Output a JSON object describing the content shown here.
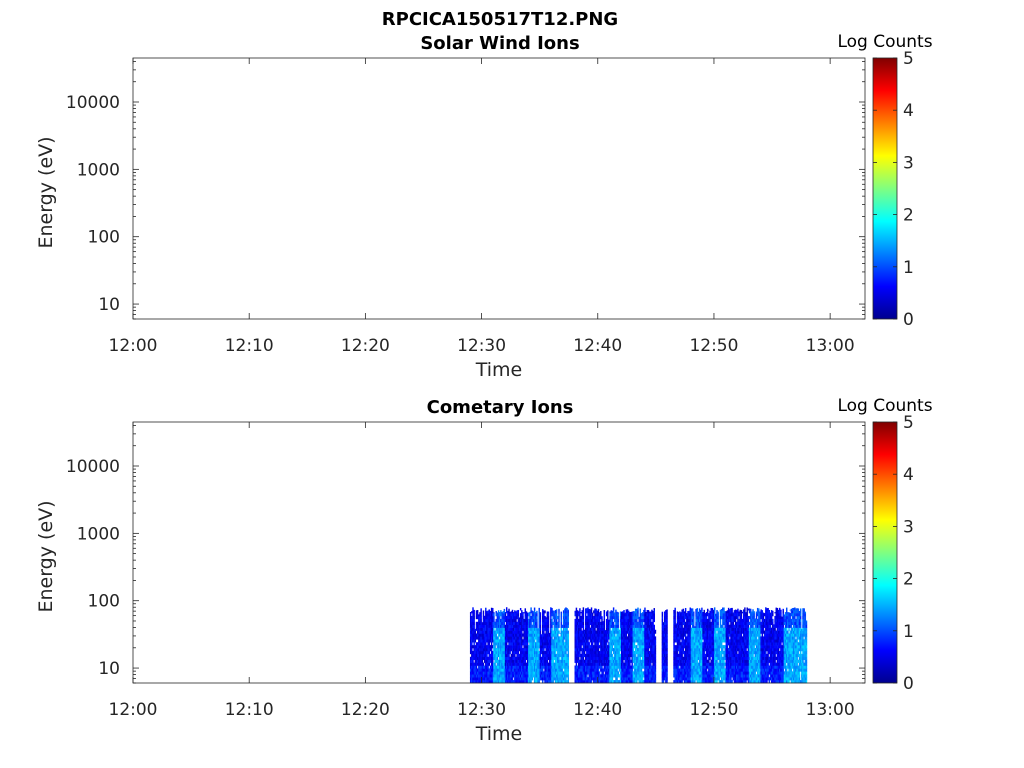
{
  "figure": {
    "title": "RPCICA150517T12.PNG"
  },
  "colors": {
    "colormap": [
      "#00008f",
      "#0000ff",
      "#0080ff",
      "#00ffff",
      "#80ff80",
      "#ffff00",
      "#ff8000",
      "#ff0000",
      "#800000"
    ],
    "axes": "#262626"
  },
  "chart_data": [
    {
      "type": "heatmap",
      "title": "Solar Wind Ions",
      "xlabel": "Time",
      "ylabel": "Energy (eV)",
      "yscale": "log",
      "xlim": [
        "12:00",
        "13:03"
      ],
      "ylim": [
        6,
        45000
      ],
      "xticks": [
        "12:00",
        "12:10",
        "12:20",
        "12:30",
        "12:40",
        "12:50",
        "13:00"
      ],
      "yticks": [
        10,
        100,
        1000,
        10000
      ],
      "ytick_labels": [
        "10",
        "100",
        "1000",
        "10000"
      ],
      "colorbar": {
        "label": "Log Counts",
        "range": [
          0,
          5
        ],
        "ticks": [
          "0",
          "1",
          "2",
          "3",
          "4",
          "5"
        ]
      },
      "data_present": false
    },
    {
      "type": "heatmap",
      "title": "Cometary Ions",
      "xlabel": "Time",
      "ylabel": "Energy (eV)",
      "yscale": "log",
      "xlim": [
        "12:00",
        "13:03"
      ],
      "ylim": [
        6,
        45000
      ],
      "xticks": [
        "12:00",
        "12:10",
        "12:20",
        "12:30",
        "12:40",
        "12:50",
        "13:00"
      ],
      "yticks": [
        10,
        100,
        1000,
        10000
      ],
      "ytick_labels": [
        "10",
        "100",
        "1000",
        "10000"
      ],
      "colorbar": {
        "label": "Log Counts",
        "range": [
          0,
          5
        ],
        "ticks": [
          "0",
          "1",
          "2",
          "3",
          "4",
          "5"
        ]
      },
      "data_present": true,
      "data_time_range": [
        "12:29",
        "12:58"
      ],
      "data_energy_range": [
        6,
        80
      ],
      "log_count_levels": [
        0.3,
        0.8,
        1.2,
        1.6
      ],
      "bright_intervals": [
        [
          "12:31",
          "12:32"
        ],
        [
          "12:34",
          "12:35"
        ],
        [
          "12:36",
          "12:38"
        ],
        [
          "12:41",
          "12:42"
        ],
        [
          "12:43",
          "12:44"
        ],
        [
          "12:48",
          "12:49"
        ],
        [
          "12:50",
          "12:51"
        ],
        [
          "12:53",
          "12:54"
        ],
        [
          "12:56",
          "12:58"
        ]
      ],
      "gap_intervals": [
        [
          "12:37.5",
          "12:38"
        ],
        [
          "12:45",
          "12:45.5"
        ],
        [
          "12:46",
          "12:46.5"
        ]
      ]
    }
  ]
}
